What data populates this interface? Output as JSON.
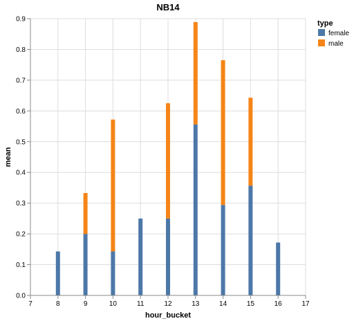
{
  "chart_data": {
    "type": "bar",
    "stacked": true,
    "title": "NB14",
    "xlabel": "hour_bucket",
    "ylabel": "mean",
    "xlim": [
      7,
      17
    ],
    "ylim": [
      0,
      0.9
    ],
    "x_ticks": [
      "7",
      "8",
      "9",
      "10",
      "11",
      "12",
      "13",
      "14",
      "15",
      "16",
      "17"
    ],
    "y_ticks": [
      "0.0",
      "0.1",
      "0.2",
      "0.3",
      "0.4",
      "0.5",
      "0.6",
      "0.7",
      "0.8",
      "0.9"
    ],
    "grid": true,
    "legend": {
      "title": "type",
      "placement": "top-right"
    },
    "series": [
      {
        "name": "female",
        "color": "#4c78a8",
        "points": [
          {
            "x": 8,
            "y": 0.143
          },
          {
            "x": 9,
            "y": 0.2
          },
          {
            "x": 10,
            "y": 0.143
          },
          {
            "x": 11,
            "y": 0.25
          },
          {
            "x": 12,
            "y": 0.25
          },
          {
            "x": 13,
            "y": 0.556
          },
          {
            "x": 14,
            "y": 0.294
          },
          {
            "x": 15,
            "y": 0.357
          },
          {
            "x": 16,
            "y": 0.172
          }
        ]
      },
      {
        "name": "male",
        "color": "#f58518",
        "points": [
          {
            "x": 9,
            "y": 0.133
          },
          {
            "x": 10,
            "y": 0.429
          },
          {
            "x": 12,
            "y": 0.375
          },
          {
            "x": 13,
            "y": 0.333
          },
          {
            "x": 14,
            "y": 0.471
          },
          {
            "x": 15,
            "y": 0.286
          }
        ]
      }
    ]
  }
}
